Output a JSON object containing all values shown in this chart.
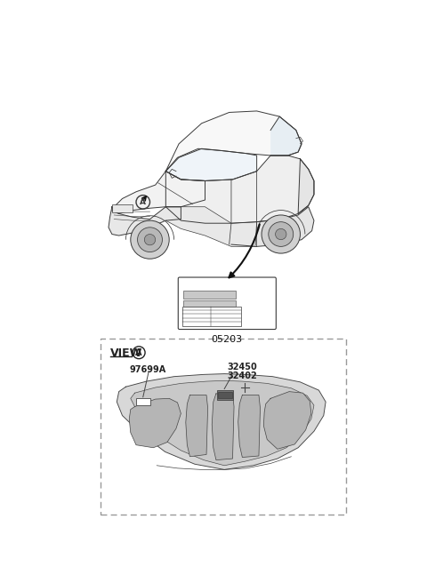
{
  "bg_color": "#ffffff",
  "outline_color": "#3a3a3a",
  "gray_light": "#f0f0f0",
  "gray_mid": "#d4d4d4",
  "gray_dark": "#aaaaaa",
  "part_05203": "05203",
  "part_32450": "32450",
  "part_32402": "32402",
  "part_97699A": "97699A",
  "view_text": "VIEW",
  "circle_text": "A",
  "dashed_color": "#999999",
  "label_color": "#222222"
}
